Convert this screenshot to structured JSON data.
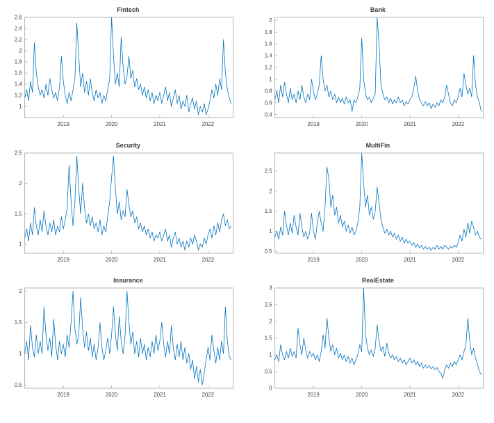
{
  "figure": {
    "background": "#ffffff",
    "line_color": "#0072BD",
    "axes_color": "#ababab",
    "label_color": "#404040"
  },
  "chart_data": [
    {
      "type": "line",
      "title": "Fintech",
      "xlabel": "",
      "ylabel": "",
      "legend": null,
      "grid": false,
      "x_start": 2018.2,
      "x_step": 0.04,
      "xlim": [
        2018.2,
        2022.52
      ],
      "ylim": [
        0.8,
        2.6
      ],
      "xticks": [
        2019,
        2020,
        2021,
        2022
      ],
      "yticks": [
        1,
        1.2,
        1.4,
        1.6,
        1.8,
        2,
        2.2,
        2.4,
        2.6
      ],
      "values": [
        1.15,
        1.3,
        1.1,
        1.45,
        1.25,
        2.15,
        1.6,
        1.35,
        1.2,
        1.3,
        1.15,
        1.4,
        1.2,
        1.5,
        1.3,
        1.15,
        1.25,
        1.1,
        1.35,
        1.9,
        1.45,
        1.2,
        1.05,
        1.25,
        1.1,
        1.3,
        1.5,
        2.5,
        1.9,
        1.35,
        1.6,
        1.25,
        1.45,
        1.2,
        1.5,
        1.25,
        1.1,
        1.3,
        1.15,
        1.25,
        1.05,
        1.2,
        1.1,
        1.3,
        1.5,
        2.6,
        1.9,
        1.4,
        1.6,
        1.35,
        2.25,
        1.7,
        1.4,
        1.55,
        1.9,
        1.5,
        1.65,
        1.35,
        1.5,
        1.3,
        1.4,
        1.2,
        1.35,
        1.15,
        1.3,
        1.1,
        1.25,
        1.05,
        1.2,
        1.1,
        1.25,
        1.05,
        1.2,
        1.35,
        1.1,
        1.25,
        1.0,
        1.15,
        1.3,
        1.05,
        1.2,
        0.95,
        1.1,
        1.0,
        1.2,
        0.9,
        1.05,
        1.15,
        0.95,
        1.1,
        0.85,
        1.0,
        0.9,
        1.05,
        0.85,
        0.95,
        1.1,
        1.3,
        1.15,
        1.4,
        1.2,
        1.5,
        1.3,
        2.2,
        1.6,
        1.3,
        1.15,
        1.05
      ]
    },
    {
      "type": "line",
      "title": "Bank",
      "xlabel": "",
      "ylabel": "",
      "legend": null,
      "grid": false,
      "x_start": 2018.2,
      "x_step": 0.04,
      "xlim": [
        2018.2,
        2022.52
      ],
      "ylim": [
        0.35,
        2.05
      ],
      "xticks": [
        2019,
        2020,
        2021,
        2022
      ],
      "yticks": [
        0.4,
        0.6,
        0.8,
        1,
        1.2,
        1.4,
        1.6,
        1.8,
        2
      ],
      "values": [
        0.65,
        0.8,
        0.6,
        0.9,
        0.7,
        0.95,
        0.75,
        0.6,
        0.85,
        0.65,
        0.75,
        0.6,
        0.8,
        0.65,
        0.9,
        0.7,
        0.6,
        0.75,
        0.65,
        1.0,
        0.8,
        0.65,
        0.75,
        0.9,
        1.4,
        1.0,
        0.8,
        0.9,
        0.7,
        0.8,
        0.65,
        0.75,
        0.6,
        0.7,
        0.6,
        0.68,
        0.58,
        0.7,
        0.6,
        0.65,
        0.45,
        0.65,
        0.6,
        0.7,
        0.85,
        1.7,
        1.0,
        0.75,
        0.65,
        0.7,
        0.6,
        0.68,
        0.75,
        2.05,
        1.6,
        0.9,
        0.75,
        0.65,
        0.7,
        0.6,
        0.68,
        0.58,
        0.65,
        0.6,
        0.7,
        0.6,
        0.65,
        0.55,
        0.62,
        0.58,
        0.65,
        0.7,
        0.85,
        1.05,
        0.8,
        0.65,
        0.6,
        0.55,
        0.62,
        0.55,
        0.6,
        0.5,
        0.58,
        0.52,
        0.6,
        0.55,
        0.65,
        0.6,
        0.7,
        0.9,
        0.75,
        0.6,
        0.55,
        0.65,
        0.6,
        0.7,
        0.85,
        0.7,
        1.1,
        0.9,
        0.75,
        0.85,
        0.7,
        1.4,
        0.9,
        0.7,
        0.6,
        0.45
      ]
    },
    {
      "type": "line",
      "title": "Security",
      "xlabel": "",
      "ylabel": "",
      "legend": null,
      "grid": false,
      "x_start": 2018.2,
      "x_step": 0.04,
      "xlim": [
        2018.2,
        2022.52
      ],
      "ylim": [
        0.85,
        2.5
      ],
      "xticks": [
        2019,
        2020,
        2021,
        2022
      ],
      "yticks": [
        1,
        1.5,
        2,
        2.5
      ],
      "values": [
        1.1,
        1.25,
        1.05,
        1.35,
        1.15,
        1.6,
        1.3,
        1.15,
        1.4,
        1.2,
        1.55,
        1.3,
        1.15,
        1.35,
        1.2,
        1.4,
        1.15,
        1.3,
        1.2,
        1.45,
        1.25,
        1.4,
        1.6,
        2.3,
        1.7,
        1.3,
        1.7,
        2.45,
        1.9,
        1.5,
        2.0,
        1.6,
        1.35,
        1.5,
        1.3,
        1.45,
        1.25,
        1.35,
        1.2,
        1.4,
        1.15,
        1.3,
        1.2,
        1.45,
        1.7,
        2.1,
        2.45,
        1.9,
        1.5,
        1.7,
        1.4,
        1.55,
        1.45,
        1.9,
        1.65,
        1.45,
        1.55,
        1.35,
        1.45,
        1.25,
        1.35,
        1.2,
        1.3,
        1.15,
        1.25,
        1.1,
        1.2,
        1.05,
        1.15,
        1.1,
        1.2,
        1.05,
        1.15,
        1.25,
        1.05,
        1.15,
        0.95,
        1.1,
        1.2,
        1.0,
        1.1,
        0.95,
        1.05,
        0.9,
        1.05,
        0.95,
        1.1,
        1.0,
        1.15,
        1.05,
        0.9,
        1.0,
        0.95,
        1.1,
        1.0,
        1.15,
        1.25,
        1.1,
        1.3,
        1.15,
        1.35,
        1.2,
        1.4,
        1.5,
        1.3,
        1.4,
        1.25,
        1.3
      ]
    },
    {
      "type": "line",
      "title": "MultiFin",
      "xlabel": "",
      "ylabel": "",
      "legend": null,
      "grid": false,
      "x_start": 2018.2,
      "x_step": 0.04,
      "xlim": [
        2018.2,
        2022.52
      ],
      "ylim": [
        0.45,
        2.95
      ],
      "xticks": [
        2019,
        2020,
        2021,
        2022
      ],
      "yticks": [
        0.5,
        1,
        1.5,
        2,
        2.5
      ],
      "values": [
        0.85,
        1.0,
        0.8,
        1.1,
        0.9,
        1.5,
        1.15,
        0.9,
        1.2,
        0.95,
        1.4,
        1.1,
        0.9,
        1.45,
        1.1,
        0.85,
        1.0,
        0.8,
        0.95,
        1.45,
        1.0,
        0.8,
        1.2,
        1.5,
        1.2,
        1.0,
        1.6,
        2.6,
        2.3,
        1.6,
        1.9,
        1.4,
        1.6,
        1.2,
        1.4,
        1.1,
        1.25,
        1.0,
        1.15,
        0.95,
        1.1,
        0.9,
        1.0,
        1.2,
        1.6,
        2.95,
        2.2,
        1.6,
        1.9,
        1.4,
        1.6,
        1.3,
        1.5,
        2.1,
        1.7,
        1.3,
        1.1,
        0.95,
        1.05,
        0.9,
        1.0,
        0.85,
        0.95,
        0.8,
        0.9,
        0.75,
        0.85,
        0.7,
        0.8,
        0.7,
        0.75,
        0.65,
        0.72,
        0.6,
        0.68,
        0.58,
        0.65,
        0.55,
        0.62,
        0.55,
        0.6,
        0.52,
        0.6,
        0.55,
        0.65,
        0.55,
        0.62,
        0.55,
        0.65,
        0.6,
        0.55,
        0.62,
        0.58,
        0.65,
        0.6,
        0.7,
        0.9,
        0.75,
        1.05,
        0.85,
        1.2,
        0.95,
        1.25,
        1.1,
        0.9,
        1.0,
        0.85,
        0.8
      ]
    },
    {
      "type": "line",
      "title": "Insurance",
      "xlabel": "",
      "ylabel": "",
      "legend": null,
      "grid": false,
      "x_start": 2018.2,
      "x_step": 0.04,
      "xlim": [
        2018.2,
        2022.52
      ],
      "ylim": [
        0.45,
        2.05
      ],
      "xticks": [
        2019,
        2020,
        2021,
        2022
      ],
      "yticks": [
        0.5,
        1,
        1.5,
        2
      ],
      "values": [
        1.0,
        1.2,
        0.9,
        1.45,
        1.1,
        0.95,
        1.3,
        1.0,
        1.2,
        1.0,
        1.75,
        1.3,
        1.05,
        1.25,
        0.95,
        1.55,
        1.15,
        0.9,
        1.2,
        1.0,
        1.15,
        0.95,
        1.3,
        1.1,
        1.5,
        2.0,
        1.4,
        1.15,
        1.3,
        1.9,
        1.4,
        1.1,
        1.35,
        1.05,
        1.25,
        0.95,
        1.15,
        0.9,
        1.1,
        1.5,
        1.1,
        0.9,
        1.05,
        1.25,
        1.0,
        1.3,
        1.75,
        1.3,
        1.05,
        1.6,
        1.2,
        1.0,
        1.3,
        2.0,
        1.5,
        1.15,
        1.35,
        1.0,
        1.2,
        0.95,
        1.25,
        1.0,
        1.15,
        0.9,
        1.1,
        0.95,
        1.2,
        1.0,
        1.3,
        1.05,
        1.2,
        1.5,
        1.15,
        0.95,
        1.2,
        1.0,
        1.45,
        1.1,
        0.9,
        1.15,
        0.95,
        1.2,
        0.9,
        1.1,
        0.85,
        1.0,
        0.75,
        0.9,
        0.6,
        0.8,
        0.55,
        0.75,
        0.5,
        0.7,
        0.9,
        1.1,
        0.9,
        1.3,
        1.05,
        0.85,
        1.1,
        0.9,
        1.2,
        1.0,
        1.75,
        1.2,
        0.95,
        0.9
      ]
    },
    {
      "type": "line",
      "title": "RealEstate",
      "xlabel": "",
      "ylabel": "",
      "legend": null,
      "grid": false,
      "x_start": 2018.2,
      "x_step": 0.04,
      "xlim": [
        2018.2,
        2022.52
      ],
      "ylim": [
        0,
        3
      ],
      "xticks": [
        2019,
        2020,
        2021,
        2022
      ],
      "yticks": [
        0,
        0.5,
        1,
        1.5,
        2,
        2.5,
        3
      ],
      "values": [
        0.85,
        1.0,
        0.8,
        1.3,
        1.0,
        0.85,
        1.1,
        0.9,
        1.2,
        0.95,
        1.1,
        0.9,
        1.8,
        1.3,
        1.0,
        1.5,
        1.15,
        0.9,
        1.1,
        0.95,
        1.05,
        0.85,
        1.0,
        0.8,
        1.1,
        1.6,
        1.2,
        2.1,
        1.5,
        1.1,
        1.3,
        1.0,
        1.2,
        0.9,
        1.05,
        0.85,
        1.0,
        0.8,
        0.95,
        0.75,
        0.9,
        0.7,
        0.85,
        1.0,
        1.3,
        1.1,
        3.0,
        1.6,
        1.2,
        1.0,
        1.15,
        0.95,
        1.2,
        1.9,
        1.4,
        1.1,
        1.25,
        0.95,
        1.35,
        1.05,
        0.9,
        1.0,
        0.85,
        0.95,
        0.8,
        0.9,
        0.75,
        0.85,
        0.7,
        0.8,
        0.9,
        0.75,
        0.85,
        0.7,
        0.8,
        0.65,
        0.75,
        0.6,
        0.7,
        0.6,
        0.68,
        0.58,
        0.65,
        0.55,
        0.62,
        0.5,
        0.45,
        0.3,
        0.55,
        0.7,
        0.6,
        0.75,
        0.65,
        0.8,
        0.7,
        0.85,
        1.0,
        0.85,
        1.1,
        1.3,
        2.1,
        1.4,
        1.0,
        1.2,
        0.9,
        0.7,
        0.5,
        0.4
      ]
    }
  ]
}
